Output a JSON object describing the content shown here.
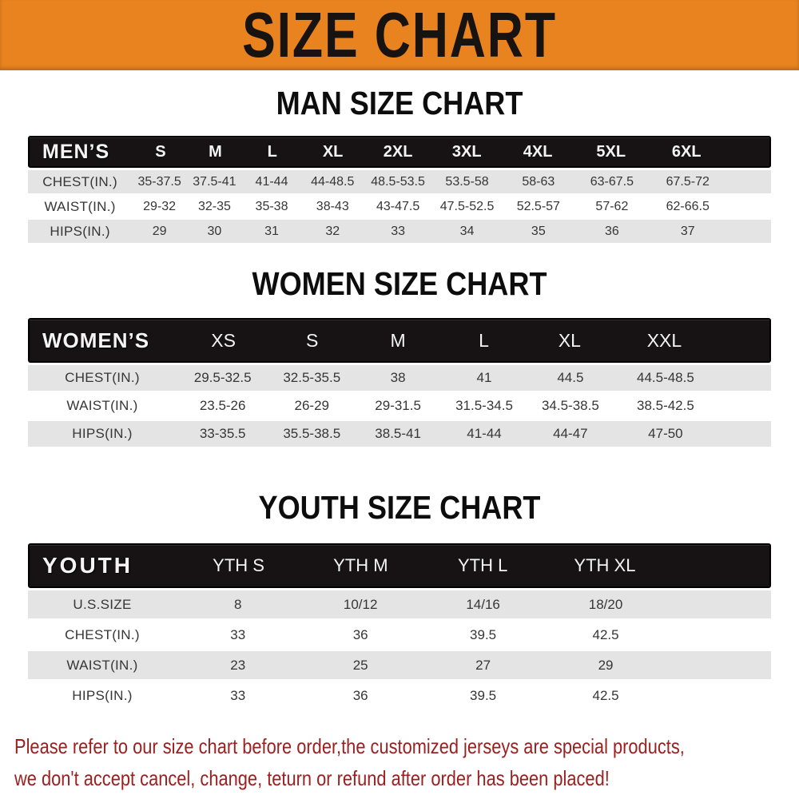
{
  "banner": {
    "title": "SIZE CHART"
  },
  "men": {
    "heading": "MAN SIZE CHART",
    "corner_label": "MEN’S",
    "sizes": [
      "S",
      "M",
      "L",
      "XL",
      "2XL",
      "3XL",
      "4XL",
      "5XL",
      "6XL"
    ],
    "rows": [
      {
        "label": "CHEST(IN.)",
        "values": [
          "35-37.5",
          "37.5-41",
          "41-44",
          "44-48.5",
          "48.5-53.5",
          "53.5-58",
          "58-63",
          "63-67.5",
          "67.5-72"
        ]
      },
      {
        "label": "WAIST(IN.)",
        "values": [
          "29-32",
          "32-35",
          "35-38",
          "38-43",
          "43-47.5",
          "47.5-52.5",
          "52.5-57",
          "57-62",
          "62-66.5"
        ]
      },
      {
        "label": "HIPS(IN.)",
        "values": [
          "29",
          "30",
          "31",
          "32",
          "33",
          "34",
          "35",
          "36",
          "37"
        ]
      }
    ]
  },
  "women": {
    "heading": "WOMEN SIZE CHART",
    "corner_label": "WOMEN’S",
    "sizes": [
      "XS",
      "S",
      "M",
      "L",
      "XL",
      "XXL"
    ],
    "rows": [
      {
        "label": "CHEST(IN.)",
        "values": [
          "29.5-32.5",
          "32.5-35.5",
          "38",
          "41",
          "44.5",
          "44.5-48.5"
        ]
      },
      {
        "label": "WAIST(IN.)",
        "values": [
          "23.5-26",
          "26-29",
          "29-31.5",
          "31.5-34.5",
          "34.5-38.5",
          "38.5-42.5"
        ]
      },
      {
        "label": "HIPS(IN.)",
        "values": [
          "33-35.5",
          "35.5-38.5",
          "38.5-41",
          "41-44",
          "44-47",
          "47-50"
        ]
      }
    ]
  },
  "youth": {
    "heading": "YOUTH SIZE CHART",
    "corner_label": "YOUTH",
    "sizes": [
      "YTH S",
      "YTH M",
      "YTH L",
      "YTH XL"
    ],
    "rows": [
      {
        "label": "U.S.SIZE",
        "values": [
          "8",
          "10/12",
          "14/16",
          "18/20"
        ]
      },
      {
        "label": "CHEST(IN.)",
        "values": [
          "33",
          "36",
          "39.5",
          "42.5"
        ]
      },
      {
        "label": "WAIST(IN.)",
        "values": [
          "23",
          "25",
          "27",
          "29"
        ]
      },
      {
        "label": "HIPS(IN.)",
        "values": [
          "33",
          "36",
          "39.5",
          "42.5"
        ]
      }
    ]
  },
  "footer": {
    "line1": "Please refer to our size chart before order,the customized jerseys are special products,",
    "line2": "we don't accept cancel, change, teturn or refund after order has been placed!"
  },
  "colors": {
    "banner_orange": "#e8831f",
    "header_bar_black": "#171314",
    "row_stripe_gray": "#e4e4e4",
    "note_red": "#9b2020"
  }
}
